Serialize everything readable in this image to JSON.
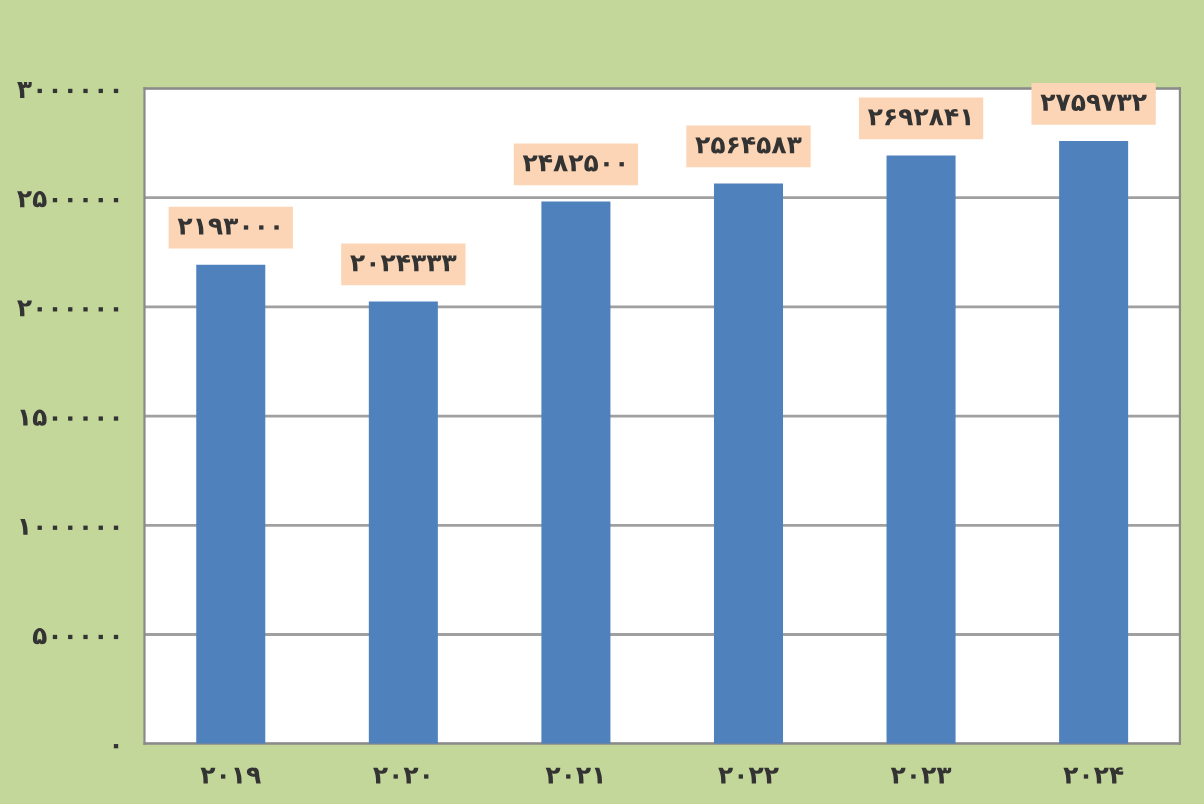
{
  "chart_data": {
    "type": "bar",
    "categories": [
      "۲۰۱۹",
      "۲۰۲۰",
      "۲۰۲۱",
      "۲۰۲۲",
      "۲۰۲۳",
      "۲۰۲۴"
    ],
    "values": [
      2193000,
      2024333,
      2482500,
      2564583,
      2692841,
      2759732
    ],
    "value_labels": [
      "۲۱۹۳۰۰۰",
      "۲۰۲۴۳۳۳",
      "۲۴۸۲۵۰۰",
      "۲۵۶۴۵۸۳",
      "۲۶۹۲۸۴۱",
      "۲۷۵۹۷۳۲"
    ],
    "color": "#4f81bd",
    "ylim": [
      0,
      3000000
    ],
    "yticks": [
      {
        "value": 0,
        "label": "۰"
      },
      {
        "value": 500000,
        "label": "۵۰۰۰۰۰"
      },
      {
        "value": 1000000,
        "label": "۱۰۰۰۰۰۰"
      },
      {
        "value": 1500000,
        "label": "۱۵۰۰۰۰۰"
      },
      {
        "value": 2000000,
        "label": "۲۰۰۰۰۰۰"
      },
      {
        "value": 2500000,
        "label": "۲۵۰۰۰۰۰"
      },
      {
        "value": 3000000,
        "label": "۳۰۰۰۰۰۰"
      }
    ],
    "grid": "y"
  }
}
